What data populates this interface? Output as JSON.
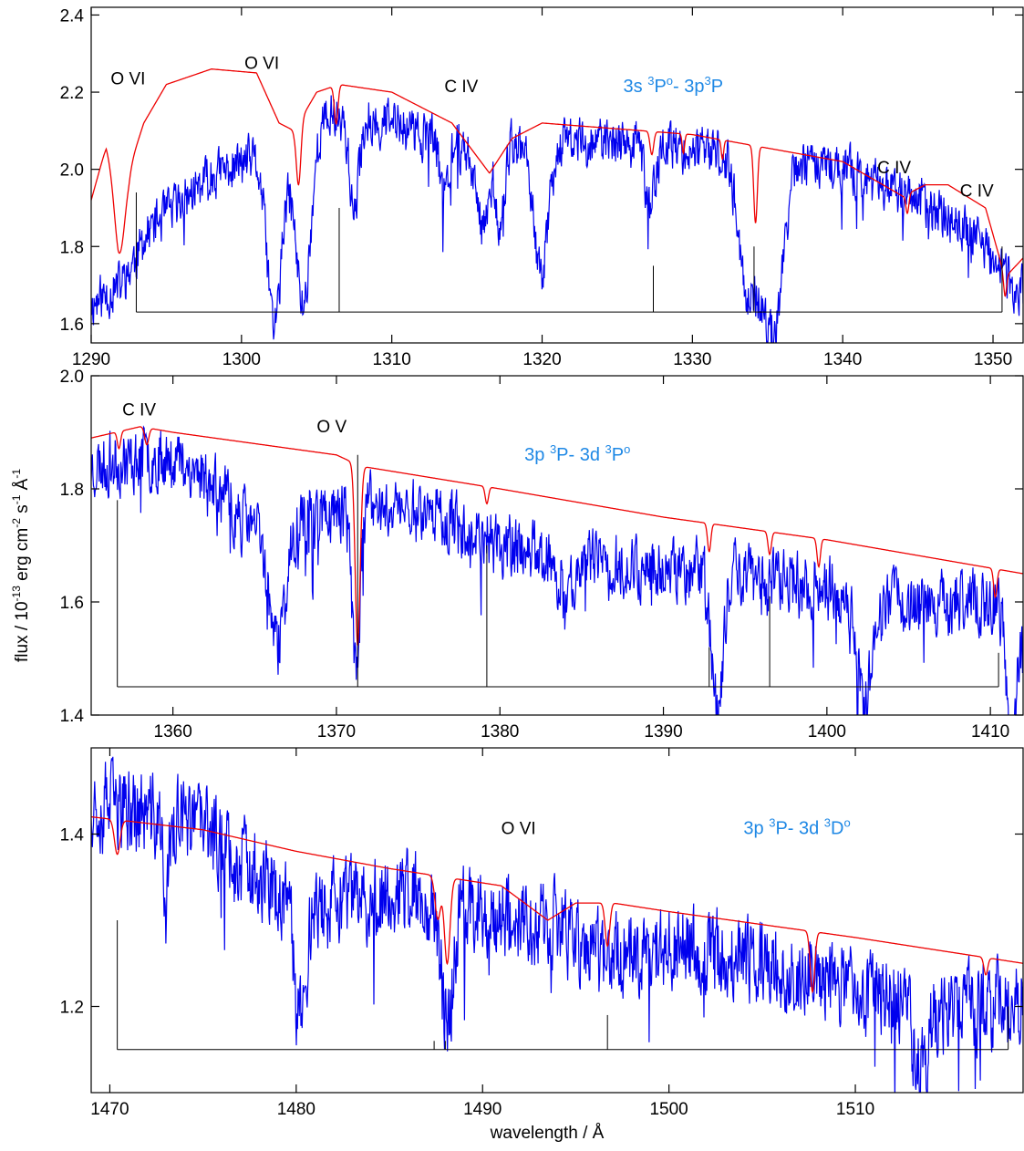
{
  "figure": {
    "xlabel": "wavelength / Å",
    "ylabel": "flux / 10-13 erg cm-2 s-1 Å-1",
    "ylabel_parts": {
      "lead": "flux / 10",
      "exp1": "-13",
      "mid1": " erg cm",
      "exp2": "-2",
      "mid2": " s",
      "exp3": "-1",
      "mid3": " Å",
      "exp4": "-1"
    },
    "colors": {
      "observed": "#0000ee",
      "model": "#ee0000",
      "marker": "#000000",
      "transition": "#1e88e5"
    }
  },
  "chart_data": [
    {
      "type": "line",
      "xlim": [
        1290,
        1352
      ],
      "ylim": [
        1.55,
        2.42
      ],
      "x_ticks": [
        1290,
        1300,
        1310,
        1320,
        1330,
        1340,
        1350
      ],
      "x_tick_labels": [
        "1290",
        "1300",
        "1310",
        "1320",
        "1330",
        "1340",
        "1350"
      ],
      "y_ticks": [
        1.6,
        1.8,
        2.0,
        2.2,
        2.4
      ],
      "y_tick_labels": [
        "1.6",
        "1.8",
        "2.0",
        "2.2",
        "2.4"
      ],
      "series": [
        {
          "role": "observed",
          "seed": 11,
          "continuum": [
            [
              1290,
              1.65
            ],
            [
              1292,
              1.7
            ],
            [
              1294,
              1.85
            ],
            [
              1298,
              1.98
            ],
            [
              1302,
              2.05
            ],
            [
              1306,
              2.14
            ],
            [
              1310,
              2.12
            ],
            [
              1315,
              2.05
            ],
            [
              1320,
              2.08
            ],
            [
              1330,
              2.05
            ],
            [
              1340,
              2.0
            ],
            [
              1345,
              1.92
            ],
            [
              1349,
              1.82
            ],
            [
              1352,
              1.68
            ]
          ],
          "noise": 0.055,
          "absorptions": [
            [
              1302.2,
              0.5,
              0.45
            ],
            [
              1304.1,
              0.5,
              0.45
            ],
            [
              1307.5,
              0.3,
              0.25
            ],
            [
              1316.0,
              0.4,
              0.2
            ],
            [
              1317.2,
              0.3,
              0.2
            ],
            [
              1319.9,
              0.5,
              0.35
            ],
            [
              1333.7,
              0.6,
              0.35
            ],
            [
              1334.9,
              0.5,
              0.3
            ],
            [
              1335.7,
              0.5,
              0.3
            ],
            [
              1327.2,
              0.3,
              0.15
            ],
            [
              1313.5,
              0.3,
              0.12
            ]
          ]
        },
        {
          "role": "model",
          "continuum": [
            [
              1290,
              1.92
            ],
            [
              1291,
              2.06
            ],
            [
              1291.8,
              1.98
            ],
            [
              1292.5,
              2.0
            ],
            [
              1293.5,
              2.12
            ],
            [
              1295,
              2.22
            ],
            [
              1298,
              2.26
            ],
            [
              1301,
              2.25
            ],
            [
              1302.5,
              2.12
            ],
            [
              1303.5,
              2.1
            ],
            [
              1305,
              2.2
            ],
            [
              1306.5,
              2.22
            ],
            [
              1310,
              2.2
            ],
            [
              1314,
              2.12
            ],
            [
              1316.5,
              1.99
            ],
            [
              1318,
              2.08
            ],
            [
              1320,
              2.12
            ],
            [
              1330,
              2.09
            ],
            [
              1340,
              2.02
            ],
            [
              1344,
              1.93
            ],
            [
              1345.5,
              1.96
            ],
            [
              1347,
              1.96
            ],
            [
              1349.5,
              1.9
            ],
            [
              1350.8,
              1.72
            ],
            [
              1352,
              1.77
            ]
          ],
          "absorptions": [
            [
              1291.9,
              0.35,
              0.2
            ],
            [
              1303.8,
              0.15,
              0.16
            ],
            [
              1306.3,
              0.12,
              0.1
            ],
            [
              1327.3,
              0.12,
              0.06
            ],
            [
              1329.4,
              0.08,
              0.05
            ],
            [
              1332.0,
              0.08,
              0.05
            ],
            [
              1334.2,
              0.12,
              0.2
            ],
            [
              1344.3,
              0.1,
              0.05
            ],
            [
              1350.8,
              0.1,
              0.05
            ]
          ]
        }
      ],
      "marker_baseline_y": 1.63,
      "marker_baseline_x": [
        1293.0,
        1350.6
      ],
      "markers": [
        {
          "x": 1293.0,
          "top": 1.94
        },
        {
          "x": 1306.5,
          "top": 1.9
        },
        {
          "x": 1327.4,
          "top": 1.75
        },
        {
          "x": 1334.1,
          "top": 1.8
        },
        {
          "x": 1350.6,
          "top": 1.8
        }
      ],
      "ion_labels": [
        {
          "text": "O VI",
          "x": 1291.3,
          "y": 2.22
        },
        {
          "text": "O VI",
          "x": 1300.2,
          "y": 2.26
        },
        {
          "text": "C IV",
          "x": 1313.5,
          "y": 2.2
        },
        {
          "text": "C IV",
          "x": 1342.3,
          "y": 1.99
        },
        {
          "text": "C IV",
          "x": 1347.8,
          "y": 1.93
        }
      ],
      "transition": {
        "x": 1325.4,
        "y": 2.2,
        "parts": [
          "3s ",
          "3",
          "P",
          "o",
          "- 3p",
          "3",
          "P"
        ]
      }
    },
    {
      "type": "line",
      "xlim": [
        1355,
        1412
      ],
      "ylim": [
        1.4,
        2.0
      ],
      "x_ticks": [
        1360,
        1370,
        1380,
        1390,
        1400,
        1410
      ],
      "x_tick_labels": [
        "1360",
        "1370",
        "1380",
        "1390",
        "1400",
        "1410"
      ],
      "y_ticks": [
        1.4,
        1.6,
        1.8,
        2.0
      ],
      "y_tick_labels": [
        "1.4",
        "1.6",
        "1.8",
        "2.0"
      ],
      "series": [
        {
          "role": "observed",
          "seed": 23,
          "continuum": [
            [
              1355,
              1.84
            ],
            [
              1360,
              1.86
            ],
            [
              1362,
              1.82
            ],
            [
              1364,
              1.75
            ],
            [
              1366,
              1.72
            ],
            [
              1368,
              1.75
            ],
            [
              1372,
              1.77
            ],
            [
              1376,
              1.76
            ],
            [
              1380,
              1.7
            ],
            [
              1385,
              1.67
            ],
            [
              1390,
              1.66
            ],
            [
              1395,
              1.65
            ],
            [
              1400,
              1.62
            ],
            [
              1405,
              1.6
            ],
            [
              1410,
              1.6
            ],
            [
              1412,
              1.55
            ]
          ],
          "noise": 0.05,
          "absorptions": [
            [
              1366.4,
              0.5,
              0.2
            ],
            [
              1371.2,
              0.25,
              0.28
            ],
            [
              1393.3,
              0.35,
              0.25
            ],
            [
              1402.3,
              0.4,
              0.2
            ],
            [
              1411.3,
              0.3,
              0.2
            ],
            [
              1384.0,
              0.3,
              0.1
            ]
          ]
        },
        {
          "role": "model",
          "continuum": [
            [
              1355,
              1.89
            ],
            [
              1358,
              1.91
            ],
            [
              1360,
              1.9
            ],
            [
              1365,
              1.88
            ],
            [
              1370,
              1.86
            ],
            [
              1371.5,
              1.84
            ],
            [
              1380,
              1.8
            ],
            [
              1390,
              1.75
            ],
            [
              1400,
              1.71
            ],
            [
              1412,
              1.65
            ]
          ],
          "absorptions": [
            [
              1356.7,
              0.1,
              0.03
            ],
            [
              1358.4,
              0.12,
              0.03
            ],
            [
              1371.3,
              0.15,
              0.32
            ],
            [
              1379.2,
              0.1,
              0.03
            ],
            [
              1392.8,
              0.1,
              0.05
            ],
            [
              1396.5,
              0.1,
              0.04
            ],
            [
              1399.5,
              0.1,
              0.05
            ],
            [
              1410.3,
              0.1,
              0.05
            ]
          ]
        }
      ],
      "marker_baseline_y": 1.45,
      "marker_baseline_x": [
        1356.6,
        1410.5
      ],
      "markers": [
        {
          "x": 1356.6,
          "top": 1.78
        },
        {
          "x": 1371.3,
          "top": 1.86
        },
        {
          "x": 1379.2,
          "top": 1.7
        },
        {
          "x": 1392.8,
          "top": 1.52
        },
        {
          "x": 1396.5,
          "top": 1.61
        },
        {
          "x": 1410.5,
          "top": 1.51
        }
      ],
      "ion_labels": [
        {
          "text": "C IV",
          "x": 1356.9,
          "y": 1.93
        },
        {
          "text": "O V",
          "x": 1368.8,
          "y": 1.9
        }
      ],
      "transition": {
        "x": 1381.5,
        "y": 1.85,
        "parts": [
          "3p ",
          "3",
          "P- 3d ",
          "3",
          "P",
          "o"
        ]
      }
    },
    {
      "type": "line",
      "xlim": [
        1469,
        1519
      ],
      "ylim": [
        1.1,
        1.5
      ],
      "x_ticks": [
        1470,
        1480,
        1490,
        1500,
        1510
      ],
      "x_tick_labels": [
        "1470",
        "1480",
        "1490",
        "1500",
        "1510"
      ],
      "y_ticks": [
        1.2,
        1.4
      ],
      "y_tick_labels": [
        "1.2",
        "1.4"
      ],
      "series": [
        {
          "role": "observed",
          "seed": 37,
          "continuum": [
            [
              1469,
              1.44
            ],
            [
              1472,
              1.42
            ],
            [
              1475,
              1.41
            ],
            [
              1478,
              1.35
            ],
            [
              1480,
              1.31
            ],
            [
              1483,
              1.32
            ],
            [
              1486,
              1.33
            ],
            [
              1490,
              1.31
            ],
            [
              1494,
              1.29
            ],
            [
              1496,
              1.26
            ],
            [
              1500,
              1.27
            ],
            [
              1505,
              1.25
            ],
            [
              1510,
              1.22
            ],
            [
              1515,
              1.2
            ],
            [
              1519,
              1.2
            ]
          ],
          "noise": 0.045,
          "absorptions": [
            [
              1473.0,
              0.15,
              0.1
            ],
            [
              1480.2,
              0.3,
              0.12
            ],
            [
              1488.1,
              0.3,
              0.14
            ],
            [
              1513.5,
              0.4,
              0.08
            ]
          ]
        },
        {
          "role": "model",
          "continuum": [
            [
              1469,
              1.42
            ],
            [
              1475,
              1.405
            ],
            [
              1480,
              1.38
            ],
            [
              1485,
              1.36
            ],
            [
              1488,
              1.35
            ],
            [
              1491,
              1.34
            ],
            [
              1493.5,
              1.3
            ],
            [
              1495,
              1.32
            ],
            [
              1497,
              1.32
            ],
            [
              1500,
              1.31
            ],
            [
              1510,
              1.28
            ],
            [
              1519,
              1.25
            ]
          ],
          "absorptions": [
            [
              1470.4,
              0.15,
              0.04
            ],
            [
              1487.6,
              0.15,
              0.05
            ],
            [
              1488.1,
              0.15,
              0.1
            ],
            [
              1496.7,
              0.12,
              0.05
            ],
            [
              1507.7,
              0.12,
              0.07
            ],
            [
              1517.0,
              0.1,
              0.02
            ]
          ]
        }
      ],
      "marker_baseline_y": 1.15,
      "marker_baseline_x": [
        1470.4,
        1518.2
      ],
      "markers": [
        {
          "x": 1470.4,
          "top": 1.3
        },
        {
          "x": 1487.4,
          "top": 1.16
        },
        {
          "x": 1488.0,
          "top": 1.16
        },
        {
          "x": 1496.7,
          "top": 1.19
        },
        {
          "x": 1518.2,
          "top": 1.2
        }
      ],
      "ion_labels": [
        {
          "text": "O VI",
          "x": 1491.0,
          "y": 1.4
        }
      ],
      "transition": {
        "x": 1504.0,
        "y": 1.4,
        "parts": [
          "3p ",
          "3",
          "P- 3d ",
          "3",
          "D",
          "o"
        ]
      }
    }
  ]
}
